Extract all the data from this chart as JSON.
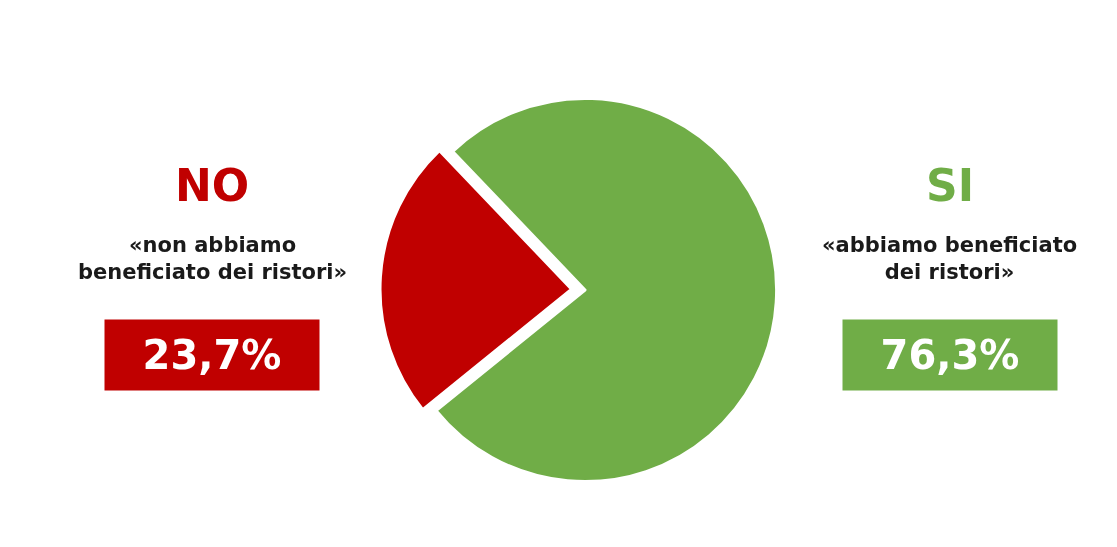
{
  "chart_data": {
    "type": "pie",
    "categories": [
      "NO",
      "SI"
    ],
    "values": [
      23.7,
      76.3
    ],
    "colors": [
      "#c00000",
      "#70ad47"
    ],
    "value_labels": [
      "23,7%",
      "76,3%"
    ],
    "annotations": [
      "«non abbiamo\nbeneficiato dei ristori»",
      "«abbiamo beneficiato\ndei ristori»"
    ],
    "legend": false
  }
}
